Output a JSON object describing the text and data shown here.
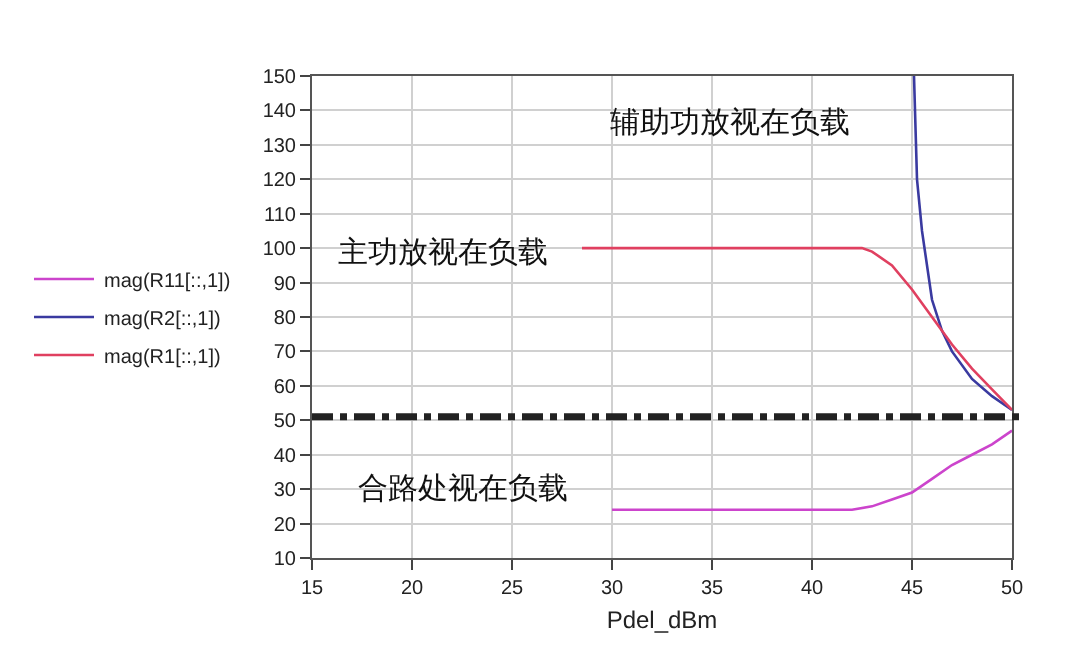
{
  "chart_data": {
    "type": "line",
    "xlabel": "Pdel_dBm",
    "xlim": [
      15,
      50
    ],
    "xticks": [
      15,
      20,
      25,
      30,
      35,
      40,
      45,
      50
    ],
    "ylim": [
      10,
      150
    ],
    "yticks": [
      10,
      20,
      30,
      40,
      50,
      60,
      70,
      80,
      90,
      100,
      110,
      120,
      130,
      140,
      150
    ],
    "grid": true,
    "legend": "left",
    "marker": "none",
    "line_style": "solid",
    "series": [
      {
        "name": "mag(R11[::,1])",
        "color": "#cc44cc",
        "x": [
          30,
          42,
          43,
          44,
          45,
          46,
          47,
          48,
          49,
          50
        ],
        "values": [
          24,
          24,
          25,
          27,
          29,
          33,
          37,
          40,
          43,
          47
        ]
      },
      {
        "name": "mag(R2[::,1])",
        "color": "#3a3aa0",
        "x": [
          45.1,
          45.25,
          45.5,
          46,
          46.5,
          47,
          48,
          49,
          50
        ],
        "values": [
          150,
          120,
          105,
          85,
          76,
          70,
          62,
          57,
          53
        ]
      },
      {
        "name": "mag(R1[::,1])",
        "color": "#e04060",
        "x": [
          28.5,
          42.5,
          43,
          44,
          45,
          46,
          47,
          48,
          49,
          50
        ],
        "values": [
          100,
          100,
          99,
          95,
          88,
          80,
          72,
          65,
          59,
          53
        ]
      }
    ],
    "ref_lines": [
      {
        "axis": "y",
        "value": 51,
        "color": "#222222",
        "line_style": "dashdot"
      }
    ],
    "annotations": [
      "辅助功放视在负载",
      "主功放视在负载",
      "合路处视在负载"
    ]
  }
}
